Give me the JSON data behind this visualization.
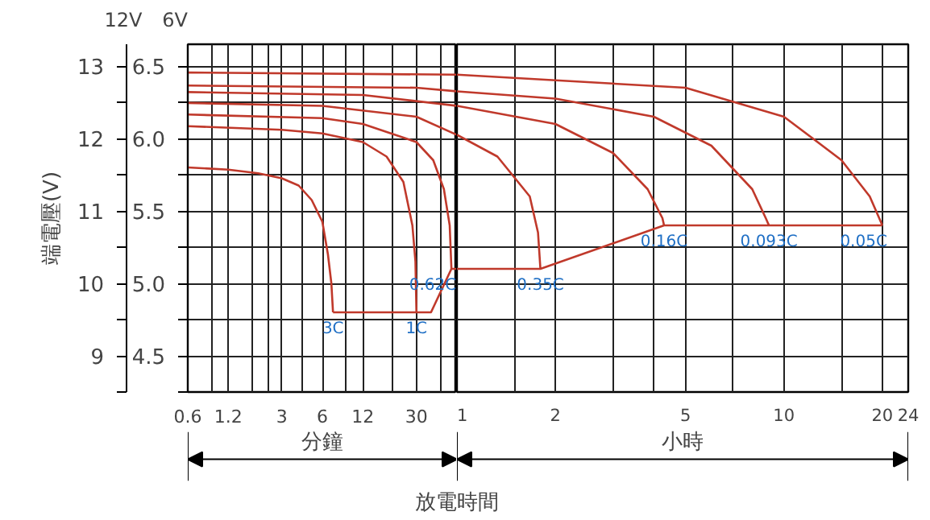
{
  "chart_data": [
    {
      "type": "line",
      "xlabel": "分鐘",
      "ylabel": "端電壓(V)",
      "annotations": [
        "12V",
        "6V",
        "放電時間"
      ],
      "log": "x",
      "grid": true,
      "xlim": [
        0.6,
        60
      ],
      "xticks": [
        0.6,
        {
          "value": 0.9,
          "label": null
        },
        1.2,
        {
          "value": 1.8,
          "label": null
        },
        {
          "value": 2.4,
          "label": null
        },
        3,
        {
          "value": 4.2,
          "label": null
        },
        6,
        {
          "value": 9,
          "label": null
        },
        12,
        {
          "value": 20,
          "label": null
        },
        30,
        {
          "value": 45,
          "label": null
        }
      ],
      "ylim": [
        8.5,
        13.3
      ],
      "yticks": [
        {
          "value": 8.5,
          "label": null
        },
        9,
        {
          "value": 9.5,
          "label": null
        },
        10,
        {
          "value": 10.5,
          "label": null
        },
        11,
        {
          "value": 11.5,
          "label": null
        },
        12,
        {
          "value": 12.5,
          "label": null
        },
        13
      ],
      "y2lim": [
        4.25,
        6.65
      ],
      "y2ticks": [
        {
          "value": 4.25,
          "label": null
        },
        {
          "value": 4.5,
          "label": "4.5"
        },
        {
          "value": 4.75,
          "label": null
        },
        {
          "value": 5.0,
          "label": "5.0"
        },
        {
          "value": 5.25,
          "label": null
        },
        {
          "value": 5.5,
          "label": "5.5"
        },
        {
          "value": 5.75,
          "label": null
        },
        {
          "value": 6.0,
          "label": "6.0"
        },
        {
          "value": 6.25,
          "label": null
        },
        {
          "value": 6.5,
          "label": "6.5"
        }
      ],
      "series": [
        {
          "name": "3C",
          "color": "#c0392b",
          "x": [
            0.6,
            1.2,
            2,
            3,
            4,
            5,
            6,
            6.6,
            7.0,
            7.2
          ],
          "values": [
            11.6,
            11.57,
            11.52,
            11.45,
            11.35,
            11.15,
            10.85,
            10.4,
            10.0,
            9.6
          ]
        },
        {
          "name": "1C",
          "color": "#c0392b",
          "x": [
            0.6,
            3,
            6,
            12,
            18,
            24,
            28,
            29.5,
            30
          ],
          "values": [
            12.17,
            12.12,
            12.07,
            11.95,
            11.75,
            11.4,
            10.8,
            10.3,
            9.6
          ]
        },
        {
          "name": "0.62C",
          "color": "#c0392b",
          "x": [
            0.6,
            6,
            12,
            30,
            40,
            48,
            53,
            54.6
          ],
          "values": [
            12.33,
            12.28,
            12.2,
            11.95,
            11.7,
            11.3,
            10.8,
            10.2
          ]
        },
        {
          "color": "#c0392b",
          "x": [
            0.6,
            6,
            30,
            60
          ],
          "values": [
            12.49,
            12.45,
            12.3,
            12.05
          ]
        },
        {
          "color": "#c0392b",
          "x": [
            0.6,
            12,
            60
          ],
          "values": [
            12.64,
            12.6,
            12.45
          ]
        },
        {
          "color": "#c0392b",
          "x": [
            0.6,
            30,
            60
          ],
          "values": [
            12.73,
            12.7,
            12.65
          ]
        },
        {
          "color": "#c0392b",
          "x": [
            0.6,
            60
          ],
          "values": [
            12.91,
            12.88
          ]
        },
        {
          "color": "#c0392b",
          "x": [
            7.2,
            30,
            38.5,
            54.6,
            60
          ],
          "values": [
            9.6,
            9.6,
            9.6,
            10.2,
            10.2
          ]
        }
      ]
    },
    {
      "type": "line",
      "xlabel": "小時",
      "log": "x",
      "grid": true,
      "tick_labels": "x",
      "xlim": [
        1,
        24
      ],
      "xticks": [
        1,
        {
          "value": 1.5,
          "label": null
        },
        2,
        {
          "value": 3,
          "label": null
        },
        {
          "value": 4,
          "label": null
        },
        5,
        {
          "value": 7,
          "label": null
        },
        10,
        {
          "value": 15,
          "label": null
        },
        20,
        24
      ],
      "ylim": [
        8.5,
        13.3
      ],
      "yticks": [
        {
          "value": 8.5,
          "label": null
        },
        {
          "value": 9,
          "label": null
        },
        {
          "value": 9.5,
          "label": null
        },
        {
          "value": 10,
          "label": null
        },
        {
          "value": 10.5,
          "label": null
        },
        {
          "value": 11,
          "label": null
        },
        {
          "value": 11.5,
          "label": null
        },
        {
          "value": 12,
          "label": null
        },
        {
          "value": 12.5,
          "label": null
        },
        {
          "value": 13,
          "label": null
        }
      ],
      "series": [
        {
          "name": "0.35C",
          "color": "#c0392b",
          "x": [
            1,
            1.33,
            1.67,
            1.77,
            1.8
          ],
          "values": [
            12.05,
            11.75,
            11.2,
            10.7,
            10.2
          ]
        },
        {
          "name": "0.16C",
          "color": "#c0392b",
          "x": [
            1,
            2,
            3,
            3.83,
            4.25,
            4.3
          ],
          "values": [
            12.45,
            12.2,
            11.8,
            11.3,
            10.9,
            10.8
          ]
        },
        {
          "name": "0.093C",
          "color": "#c0392b",
          "x": [
            1,
            2,
            4,
            6,
            8,
            8.8,
            9
          ],
          "values": [
            12.65,
            12.55,
            12.3,
            11.9,
            11.3,
            10.9,
            10.8
          ]
        },
        {
          "name": "0.05C",
          "color": "#c0392b",
          "x": [
            1,
            5,
            10,
            15,
            18.3,
            20
          ],
          "values": [
            12.88,
            12.7,
            12.3,
            11.7,
            11.2,
            10.8
          ]
        },
        {
          "color": "#c0392b",
          "x": [
            1,
            1.8,
            4.3,
            9,
            20
          ],
          "values": [
            10.2,
            10.2,
            10.8,
            10.8,
            10.8
          ]
        }
      ]
    }
  ]
}
